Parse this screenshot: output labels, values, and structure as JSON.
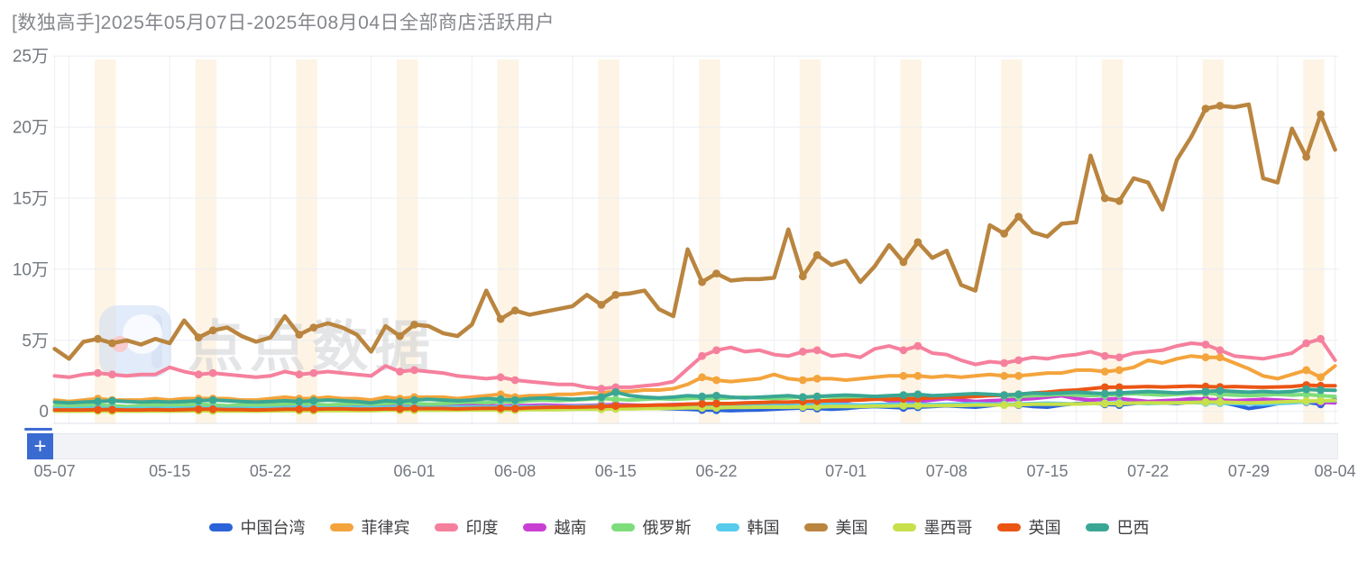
{
  "title": "[数独高手]2025年05月07日-2025年08月04日全部商店活跃用户",
  "watermark": "点点数据",
  "datazoom": {
    "add_label": "+"
  },
  "y_axis": {
    "tick_labels": [
      "25万",
      "20万",
      "15万",
      "10万",
      "5万",
      "0"
    ],
    "tick_values": [
      25,
      20,
      15,
      10,
      5,
      0
    ]
  },
  "x_axis": {
    "ticks": [
      {
        "label": "05-07",
        "day": 0
      },
      {
        "label": "05-15",
        "day": 8
      },
      {
        "label": "05-22",
        "day": 15
      },
      {
        "label": "06-01",
        "day": 25
      },
      {
        "label": "06-08",
        "day": 32
      },
      {
        "label": "06-15",
        "day": 39
      },
      {
        "label": "06-22",
        "day": 46
      },
      {
        "label": "07-01",
        "day": 55
      },
      {
        "label": "07-08",
        "day": 62
      },
      {
        "label": "07-15",
        "day": 69
      },
      {
        "label": "07-22",
        "day": 76
      },
      {
        "label": "07-29",
        "day": 83
      },
      {
        "label": "08-04",
        "day": 89
      }
    ]
  },
  "chart_data": {
    "type": "line",
    "title": "[数独高手]2025年05月07日-2025年08月04日全部商店活跃用户",
    "value_unit": "万 (10,000 users)",
    "start_date": "2025-05-07",
    "end_date": "2025-08-04",
    "num_days": 90,
    "ylim": [
      0,
      25
    ],
    "grid": true,
    "legend_position": "bottom",
    "weekend_band_color": "#fdf4e5",
    "weekend_saturdays": [
      3,
      10,
      17,
      24,
      31,
      38,
      45,
      52,
      59,
      66,
      73,
      80,
      87
    ],
    "series": [
      {
        "name": "中国台湾",
        "color": "#2b63d9",
        "values": [
          0.1,
          0.08,
          0.1,
          0.12,
          0.1,
          0.08,
          0.1,
          0.12,
          0.1,
          0.12,
          0.15,
          0.12,
          0.1,
          0.12,
          0.1,
          0.12,
          0.15,
          0.18,
          0.15,
          0.12,
          0.15,
          0.18,
          0.15,
          0.18,
          0.2,
          0.18,
          0.15,
          0.18,
          0.2,
          0.22,
          0.2,
          0.18,
          0.2,
          0.22,
          0.25,
          0.22,
          0.2,
          0.22,
          0.25,
          0.28,
          0.25,
          0.22,
          0.2,
          0.18,
          0.15,
          0.1,
          0.08,
          0.05,
          0.08,
          0.1,
          0.15,
          0.2,
          0.25,
          0.2,
          0.15,
          0.2,
          0.3,
          0.35,
          0.3,
          0.25,
          0.3,
          0.35,
          0.4,
          0.35,
          0.3,
          0.4,
          0.5,
          0.45,
          0.35,
          0.3,
          0.45,
          0.55,
          0.6,
          0.5,
          0.45,
          0.55,
          0.65,
          0.6,
          0.55,
          0.65,
          0.7,
          0.65,
          0.45,
          0.2,
          0.35,
          0.55,
          0.75,
          0.65,
          0.5,
          0.85
        ]
      },
      {
        "name": "菲律宾",
        "color": "#f4a43c",
        "values": [
          0.8,
          0.7,
          0.8,
          0.9,
          0.8,
          0.8,
          0.8,
          0.9,
          0.8,
          0.9,
          0.9,
          0.9,
          0.9,
          0.8,
          0.8,
          0.9,
          1.0,
          0.9,
          0.9,
          1.0,
          0.9,
          0.9,
          0.8,
          1.0,
          0.9,
          1.0,
          1.0,
          1.0,
          0.9,
          1.0,
          1.1,
          1.2,
          1.0,
          1.1,
          1.1,
          1.2,
          1.2,
          1.3,
          1.3,
          1.4,
          1.4,
          1.5,
          1.5,
          1.6,
          1.9,
          2.4,
          2.2,
          2.1,
          2.2,
          2.3,
          2.6,
          2.3,
          2.2,
          2.3,
          2.3,
          2.2,
          2.3,
          2.4,
          2.5,
          2.5,
          2.5,
          2.4,
          2.5,
          2.4,
          2.5,
          2.6,
          2.5,
          2.5,
          2.6,
          2.7,
          2.7,
          2.9,
          2.9,
          2.8,
          2.9,
          3.1,
          3.6,
          3.4,
          3.7,
          3.9,
          3.8,
          3.8,
          3.4,
          3.0,
          2.5,
          2.3,
          2.6,
          2.9,
          2.4,
          3.2
        ]
      },
      {
        "name": "印度",
        "color": "#f5809d",
        "values": [
          2.5,
          2.4,
          2.6,
          2.7,
          2.6,
          2.5,
          2.6,
          2.6,
          3.1,
          2.8,
          2.6,
          2.7,
          2.6,
          2.5,
          2.4,
          2.5,
          2.8,
          2.6,
          2.7,
          2.8,
          2.7,
          2.6,
          2.5,
          3.2,
          2.8,
          2.9,
          2.8,
          2.7,
          2.5,
          2.4,
          2.3,
          2.4,
          2.2,
          2.1,
          2.0,
          1.9,
          1.9,
          1.7,
          1.6,
          1.7,
          1.7,
          1.8,
          1.9,
          2.1,
          3.0,
          3.9,
          4.3,
          4.5,
          4.2,
          4.3,
          4.0,
          3.9,
          4.2,
          4.3,
          3.9,
          4.0,
          3.8,
          4.4,
          4.6,
          4.3,
          4.6,
          4.1,
          4.0,
          3.6,
          3.3,
          3.5,
          3.4,
          3.6,
          3.8,
          3.7,
          3.9,
          4.0,
          4.2,
          3.9,
          3.8,
          4.1,
          4.2,
          4.3,
          4.6,
          4.8,
          4.7,
          4.3,
          3.9,
          3.8,
          3.7,
          3.9,
          4.1,
          4.8,
          5.1,
          3.6
        ]
      },
      {
        "name": "越南",
        "color": "#c93fd4",
        "values": [
          0.3,
          0.28,
          0.3,
          0.32,
          0.3,
          0.28,
          0.3,
          0.32,
          0.3,
          0.32,
          0.35,
          0.32,
          0.3,
          0.32,
          0.3,
          0.32,
          0.35,
          0.38,
          0.35,
          0.32,
          0.35,
          0.38,
          0.35,
          0.38,
          0.4,
          0.38,
          0.35,
          0.38,
          0.4,
          0.42,
          0.4,
          0.38,
          0.4,
          0.42,
          0.45,
          0.42,
          0.4,
          0.42,
          0.45,
          0.48,
          0.45,
          0.42,
          0.45,
          0.48,
          0.5,
          0.52,
          0.5,
          0.48,
          0.5,
          0.55,
          0.6,
          0.55,
          0.5,
          0.55,
          0.6,
          0.7,
          0.9,
          0.95,
          0.75,
          0.65,
          0.7,
          0.8,
          0.9,
          0.8,
          0.7,
          0.75,
          0.8,
          0.85,
          0.9,
          1.0,
          1.1,
          0.9,
          0.8,
          0.85,
          0.9,
          0.8,
          0.7,
          0.75,
          0.8,
          0.9,
          0.85,
          0.8,
          0.75,
          0.8,
          0.85,
          0.8,
          0.75,
          0.7,
          0.65,
          0.6
        ]
      },
      {
        "name": "俄罗斯",
        "color": "#7edd7b",
        "values": [
          0.4,
          0.35,
          0.4,
          0.45,
          0.4,
          0.35,
          0.4,
          0.45,
          0.4,
          0.45,
          0.5,
          0.45,
          0.4,
          0.45,
          0.4,
          0.45,
          0.5,
          0.55,
          0.5,
          0.45,
          0.5,
          0.55,
          0.5,
          0.55,
          0.6,
          0.55,
          0.5,
          0.55,
          0.6,
          0.65,
          0.6,
          0.7,
          0.65,
          0.75,
          0.8,
          0.75,
          0.8,
          0.85,
          0.9,
          0.85,
          0.8,
          0.85,
          0.9,
          0.85,
          0.9,
          0.95,
          0.9,
          0.95,
          1.0,
          0.95,
          0.9,
          0.95,
          1.0,
          1.05,
          1.0,
          0.95,
          1.0,
          1.05,
          1.0,
          1.05,
          1.1,
          1.05,
          1.0,
          1.05,
          1.1,
          1.15,
          1.1,
          1.05,
          1.1,
          1.15,
          1.2,
          1.15,
          1.1,
          1.15,
          1.2,
          1.25,
          1.2,
          1.15,
          1.2,
          1.25,
          1.3,
          1.2,
          1.15,
          1.1,
          1.15,
          1.2,
          1.15,
          1.2,
          1.1,
          1.05
        ]
      },
      {
        "name": "韩国",
        "color": "#57cbec",
        "values": [
          0.2,
          0.18,
          0.2,
          0.22,
          0.2,
          0.18,
          0.2,
          0.22,
          0.2,
          0.22,
          0.25,
          0.22,
          0.2,
          0.22,
          0.2,
          0.22,
          0.25,
          0.28,
          0.25,
          0.22,
          0.25,
          0.28,
          0.25,
          0.28,
          0.3,
          0.28,
          0.25,
          0.28,
          0.3,
          0.32,
          0.3,
          0.32,
          0.3,
          0.32,
          0.35,
          0.32,
          0.35,
          0.38,
          0.4,
          0.38,
          0.35,
          0.38,
          0.4,
          0.42,
          0.45,
          0.42,
          0.4,
          0.42,
          0.45,
          0.48,
          0.45,
          0.42,
          0.45,
          0.48,
          0.5,
          0.48,
          0.45,
          0.48,
          0.5,
          0.52,
          0.5,
          0.48,
          0.5,
          0.52,
          0.55,
          0.52,
          0.5,
          0.52,
          0.55,
          0.58,
          0.55,
          0.52,
          0.55,
          0.58,
          0.6,
          0.58,
          0.55,
          0.58,
          0.6,
          0.62,
          0.6,
          0.58,
          0.55,
          0.52,
          0.5,
          0.55,
          0.6,
          0.68,
          0.72,
          0.75
        ]
      },
      {
        "name": "美国",
        "color": "#ba853f",
        "values": [
          4.4,
          3.7,
          4.9,
          5.1,
          4.8,
          5.0,
          4.7,
          5.1,
          4.8,
          6.4,
          5.2,
          5.7,
          5.9,
          5.3,
          4.9,
          5.2,
          6.7,
          5.4,
          5.9,
          6.2,
          5.9,
          5.4,
          4.2,
          6.0,
          5.3,
          6.1,
          6.0,
          5.5,
          5.3,
          6.1,
          8.5,
          6.5,
          7.1,
          6.8,
          7.0,
          7.2,
          7.4,
          8.2,
          7.5,
          8.2,
          8.3,
          8.5,
          7.2,
          6.7,
          11.4,
          9.1,
          9.7,
          9.2,
          9.3,
          9.3,
          9.4,
          12.8,
          9.5,
          11.0,
          10.3,
          10.6,
          9.1,
          10.2,
          11.7,
          10.5,
          11.9,
          10.8,
          11.3,
          8.9,
          8.5,
          13.1,
          12.5,
          13.7,
          12.6,
          12.3,
          13.2,
          13.3,
          18.0,
          15.0,
          14.8,
          16.4,
          16.1,
          14.2,
          17.7,
          19.3,
          21.3,
          21.5,
          21.4,
          21.6,
          16.4,
          16.1,
          19.9,
          17.9,
          20.9,
          18.4
        ]
      },
      {
        "name": "墨西哥",
        "color": "#c7e04b",
        "values": [
          0.02,
          0.02,
          0.02,
          0.03,
          0.02,
          0.02,
          0.02,
          0.03,
          0.02,
          0.03,
          0.05,
          0.03,
          0.02,
          0.03,
          0.02,
          0.03,
          0.05,
          0.05,
          0.05,
          0.05,
          0.05,
          0.05,
          0.05,
          0.08,
          0.08,
          0.08,
          0.08,
          0.08,
          0.08,
          0.1,
          0.1,
          0.1,
          0.1,
          0.12,
          0.12,
          0.12,
          0.15,
          0.15,
          0.15,
          0.18,
          0.18,
          0.2,
          0.2,
          0.22,
          0.25,
          0.25,
          0.25,
          0.28,
          0.28,
          0.3,
          0.3,
          0.3,
          0.32,
          0.32,
          0.35,
          0.35,
          0.35,
          0.38,
          0.38,
          0.4,
          0.4,
          0.4,
          0.42,
          0.42,
          0.45,
          0.45,
          0.45,
          0.48,
          0.5,
          0.5,
          0.5,
          0.52,
          0.55,
          0.55,
          0.55,
          0.58,
          0.6,
          0.6,
          0.6,
          0.62,
          0.65,
          0.65,
          0.62,
          0.6,
          0.62,
          0.65,
          0.7,
          0.72,
          0.74,
          0.78
        ]
      },
      {
        "name": "英国",
        "color": "#eb5514",
        "values": [
          0.1,
          0.1,
          0.1,
          0.12,
          0.12,
          0.1,
          0.1,
          0.12,
          0.1,
          0.12,
          0.15,
          0.15,
          0.12,
          0.12,
          0.1,
          0.12,
          0.15,
          0.15,
          0.15,
          0.18,
          0.18,
          0.15,
          0.15,
          0.18,
          0.18,
          0.2,
          0.2,
          0.2,
          0.18,
          0.2,
          0.22,
          0.22,
          0.2,
          0.25,
          0.28,
          0.3,
          0.3,
          0.32,
          0.35,
          0.38,
          0.4,
          0.42,
          0.45,
          0.45,
          0.5,
          0.53,
          0.55,
          0.55,
          0.6,
          0.62,
          0.65,
          0.65,
          0.7,
          0.72,
          0.75,
          0.78,
          0.8,
          0.85,
          0.85,
          0.88,
          0.9,
          0.95,
          1.0,
          1.0,
          1.05,
          1.1,
          1.15,
          1.2,
          1.3,
          1.35,
          1.45,
          1.5,
          1.6,
          1.7,
          1.7,
          1.72,
          1.75,
          1.72,
          1.75,
          1.78,
          1.75,
          1.72,
          1.75,
          1.72,
          1.7,
          1.72,
          1.75,
          1.85,
          1.8,
          1.8
        ]
      },
      {
        "name": "巴西",
        "color": "#3aa795",
        "values": [
          0.65,
          0.6,
          0.65,
          0.7,
          0.75,
          0.7,
          0.65,
          0.7,
          0.65,
          0.7,
          0.75,
          0.8,
          0.75,
          0.7,
          0.65,
          0.7,
          0.75,
          0.7,
          0.75,
          0.8,
          0.75,
          0.7,
          0.6,
          0.75,
          0.7,
          0.8,
          0.85,
          0.8,
          0.75,
          0.8,
          0.9,
          0.85,
          0.8,
          0.9,
          0.95,
          0.9,
          0.85,
          0.9,
          1.0,
          1.35,
          1.1,
          1.0,
          0.95,
          1.0,
          1.1,
          1.05,
          1.1,
          1.0,
          0.95,
          1.0,
          1.05,
          1.1,
          1.0,
          1.05,
          1.1,
          1.15,
          1.1,
          1.05,
          1.1,
          1.15,
          1.2,
          1.1,
          1.15,
          1.2,
          1.25,
          1.2,
          1.15,
          1.2,
          1.3,
          1.25,
          1.3,
          1.35,
          1.3,
          1.25,
          1.3,
          1.35,
          1.4,
          1.35,
          1.3,
          1.35,
          1.4,
          1.45,
          1.4,
          1.35,
          1.4,
          1.35,
          1.4,
          1.55,
          1.5,
          1.48
        ]
      }
    ]
  }
}
